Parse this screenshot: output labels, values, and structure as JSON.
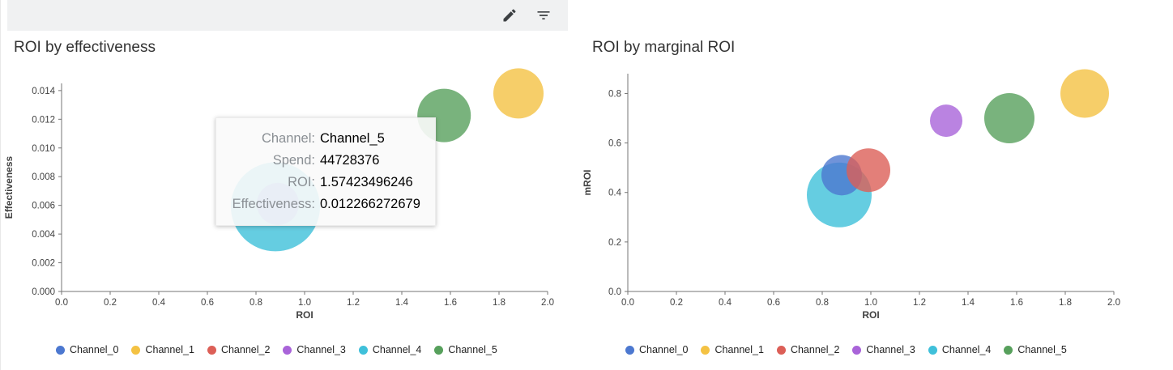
{
  "toolbar": {
    "icons": [
      "edit-icon",
      "filter-list-icon"
    ]
  },
  "channels": [
    {
      "name": "Channel_0",
      "color": "#4C78D0"
    },
    {
      "name": "Channel_1",
      "color": "#F4C243"
    },
    {
      "name": "Channel_2",
      "color": "#DC5F57"
    },
    {
      "name": "Channel_3",
      "color": "#A964D9"
    },
    {
      "name": "Channel_4",
      "color": "#3FC0DA"
    },
    {
      "name": "Channel_5",
      "color": "#57A05C"
    }
  ],
  "chart_data": [
    {
      "type": "scatter",
      "title": "ROI by effectiveness",
      "xlabel": "ROI",
      "ylabel": "Effectiveness",
      "xlim": [
        0,
        2.0
      ],
      "ylim": [
        0,
        0.0145
      ],
      "grid": false,
      "xtick_values": [
        0,
        0.2,
        0.4,
        0.6,
        0.8,
        1.0,
        1.2,
        1.4,
        1.6,
        1.8,
        2.0
      ],
      "xtick_labels": [
        "0.0",
        "0.2",
        "0.4",
        "0.6",
        "0.8",
        "1.0",
        "1.2",
        "1.4",
        "1.6",
        "1.8",
        "2.0"
      ],
      "ytick_values": [
        0,
        0.002,
        0.004,
        0.006,
        0.008,
        0.01,
        0.012,
        0.014
      ],
      "ytick_labels": [
        "0.000",
        "0.002",
        "0.004",
        "0.006",
        "0.008",
        "0.010",
        "0.012",
        "0.014"
      ],
      "legend": {
        "position": "bottom",
        "entries": [
          "Channel_0",
          "Channel_1",
          "Channel_2",
          "Channel_3",
          "Channel_4",
          "Channel_5"
        ]
      },
      "points": [
        {
          "channel": "Channel_4",
          "x": 0.88,
          "y": 0.0059,
          "r": 55
        },
        {
          "channel": "Channel_0",
          "x": 0.89,
          "y": 0.0061,
          "r": 26
        },
        {
          "channel": "Channel_5",
          "x": 1.574,
          "y": 0.012266,
          "r": 33
        },
        {
          "channel": "Channel_1",
          "x": 1.88,
          "y": 0.0138,
          "r": 31
        }
      ]
    },
    {
      "type": "scatter",
      "title": "ROI by marginal ROI",
      "xlabel": "ROI",
      "ylabel": "mROI",
      "xlim": [
        0,
        2.0
      ],
      "ylim": [
        0,
        0.88
      ],
      "grid": false,
      "xtick_values": [
        0,
        0.2,
        0.4,
        0.6,
        0.8,
        1.0,
        1.2,
        1.4,
        1.6,
        1.8,
        2.0
      ],
      "xtick_labels": [
        "0.0",
        "0.2",
        "0.4",
        "0.6",
        "0.8",
        "1.0",
        "1.2",
        "1.4",
        "1.6",
        "1.8",
        "2.0"
      ],
      "ytick_values": [
        0,
        0.2,
        0.4,
        0.6,
        0.8
      ],
      "ytick_labels": [
        "0.0",
        "0.2",
        "0.4",
        "0.6",
        "0.8"
      ],
      "legend": {
        "position": "bottom",
        "entries": [
          "Channel_0",
          "Channel_1",
          "Channel_2",
          "Channel_3",
          "Channel_4",
          "Channel_5"
        ]
      },
      "points": [
        {
          "channel": "Channel_4",
          "x": 0.87,
          "y": 0.39,
          "r": 40
        },
        {
          "channel": "Channel_0",
          "x": 0.88,
          "y": 0.47,
          "r": 25
        },
        {
          "channel": "Channel_2",
          "x": 0.99,
          "y": 0.49,
          "r": 27
        },
        {
          "channel": "Channel_3",
          "x": 1.31,
          "y": 0.69,
          "r": 20
        },
        {
          "channel": "Channel_5",
          "x": 1.57,
          "y": 0.7,
          "r": 31
        },
        {
          "channel": "Channel_1",
          "x": 1.88,
          "y": 0.8,
          "r": 30
        }
      ]
    }
  ],
  "tooltip": {
    "rows": [
      {
        "label": "Channel:",
        "value": "Channel_5"
      },
      {
        "label": "Spend:",
        "value": "44728376"
      },
      {
        "label": "ROI:",
        "value": "1.57423496246"
      },
      {
        "label": "Effectiveness:",
        "value": "0.012266272679"
      }
    ]
  }
}
